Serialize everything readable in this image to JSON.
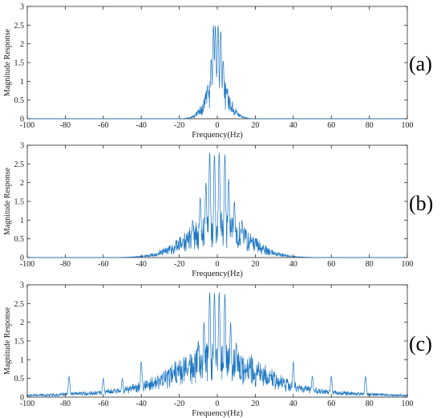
{
  "colors": {
    "line": "#1f77c4",
    "axis": "#262626",
    "background": "#ffffff"
  },
  "chart_data": [
    {
      "type": "line",
      "panel_label": "(a)",
      "xlabel": "Frequency(Hz)",
      "ylabel": "Magnitude Response",
      "xlim": [
        -100,
        100
      ],
      "ylim": [
        0,
        3
      ],
      "xticks": [
        -100,
        -80,
        -60,
        -40,
        -20,
        0,
        20,
        40,
        60,
        80,
        100
      ],
      "yticks": [
        0,
        0.5,
        1,
        1.5,
        2,
        2.5,
        3
      ],
      "grid": false,
      "spread_hz": 8,
      "background_level": 0.0,
      "peaks": [
        {
          "x": -2,
          "y": 2.5
        },
        {
          "x": -1,
          "y": 2.48
        },
        {
          "x": 0.4,
          "y": 2.5
        },
        {
          "x": 1.8,
          "y": 2.35
        },
        {
          "x": -3.2,
          "y": 1.6
        },
        {
          "x": 3.1,
          "y": 1.55
        },
        {
          "x": -5,
          "y": 0.9
        },
        {
          "x": 5,
          "y": 0.8
        },
        {
          "x": -7,
          "y": 0.3
        },
        {
          "x": 7,
          "y": 0.25
        }
      ]
    },
    {
      "type": "line",
      "panel_label": "(b)",
      "xlabel": "Frequency(Hz)",
      "ylabel": "Magnitude Response",
      "xlim": [
        -100,
        100
      ],
      "ylim": [
        0,
        3
      ],
      "xticks": [
        -100,
        -80,
        -60,
        -40,
        -20,
        0,
        20,
        40,
        60,
        80,
        100
      ],
      "yticks": [
        0,
        0.5,
        1,
        1.5,
        2,
        2.5,
        3
      ],
      "grid": false,
      "spread_hz": 22,
      "background_level": 0.0,
      "peaks": [
        {
          "x": -4,
          "y": 2.8
        },
        {
          "x": -1.5,
          "y": 2.75
        },
        {
          "x": 1,
          "y": 2.8
        },
        {
          "x": 4,
          "y": 2.75
        },
        {
          "x": -6,
          "y": 2.0
        },
        {
          "x": 6,
          "y": 2.1
        },
        {
          "x": -9,
          "y": 1.6
        },
        {
          "x": 9,
          "y": 1.5
        },
        {
          "x": -13,
          "y": 1.0
        },
        {
          "x": 13,
          "y": 1.0
        },
        {
          "x": -18,
          "y": 0.5
        },
        {
          "x": 18,
          "y": 0.45
        }
      ]
    },
    {
      "type": "line",
      "panel_label": "(c)",
      "xlabel": "Frequency(Hz)",
      "ylabel": "Magnitude Response",
      "xlim": [
        -100,
        100
      ],
      "ylim": [
        0,
        3
      ],
      "xticks": [
        -100,
        -80,
        -60,
        -40,
        -20,
        0,
        20,
        40,
        60,
        80,
        100
      ],
      "yticks": [
        0,
        0.5,
        1,
        1.5,
        2,
        2.5,
        3
      ],
      "grid": false,
      "spread_hz": 30,
      "background_level": 0.28,
      "peaks": [
        {
          "x": -4,
          "y": 2.8
        },
        {
          "x": -1.5,
          "y": 2.8
        },
        {
          "x": 1,
          "y": 2.8
        },
        {
          "x": 4,
          "y": 2.75
        },
        {
          "x": -7,
          "y": 2.0
        },
        {
          "x": 7,
          "y": 2.0
        },
        {
          "x": -10,
          "y": 1.5
        },
        {
          "x": 10,
          "y": 1.45
        },
        {
          "x": -40,
          "y": 0.95
        },
        {
          "x": 40,
          "y": 0.95
        },
        {
          "x": -78,
          "y": 0.55
        },
        {
          "x": 78,
          "y": 0.55
        },
        {
          "x": -60,
          "y": 0.5
        },
        {
          "x": 60,
          "y": 0.55
        },
        {
          "x": -20,
          "y": 0.75
        },
        {
          "x": 22,
          "y": 0.7
        },
        {
          "x": -50,
          "y": 0.5
        },
        {
          "x": 50,
          "y": 0.55
        }
      ]
    }
  ]
}
